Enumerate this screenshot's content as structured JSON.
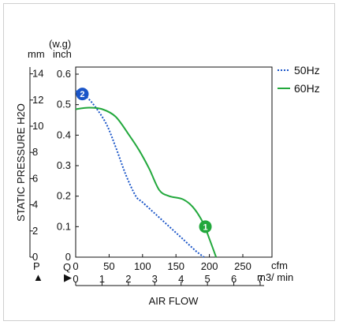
{
  "chart_data": {
    "type": "line",
    "ylabel": "STATIC PRESSURE H2O",
    "xlabel": "AIR FLOW",
    "y_unit_mm": "mm",
    "y_unit_inch": "inch",
    "y_unit_wg": "(w.g)",
    "pressure_symbol": "P",
    "flow_symbol": "Q",
    "arrow_up": "▲",
    "arrow_right": "▶",
    "x_unit_cfm": "cfm",
    "x_unit_m3min": "m3/ min",
    "xlim_cfm": [
      0,
      250
    ],
    "ylim_inch": [
      0,
      0.6
    ],
    "ylim_mm": [
      0,
      15
    ],
    "x_ticks_cfm": [
      "0",
      "50",
      "100",
      "150",
      "200",
      "250"
    ],
    "x_ticks_m3min": [
      "0",
      "1",
      "2",
      "3",
      "4",
      "5",
      "6",
      "7"
    ],
    "y_ticks_inch": [
      "0",
      "0.1",
      "0.2",
      "0.3",
      "0.4",
      "0.5",
      "0.6"
    ],
    "y_ticks_mm": [
      "0",
      "2",
      "4",
      "6",
      "8",
      "10",
      "12",
      "14"
    ],
    "grid": false,
    "legend_position": "top-right",
    "series": [
      {
        "name": "50Hz",
        "color": "#1a55c8",
        "style": "dotted",
        "marker_label": "2",
        "marker_at": [
          10,
          0.535
        ],
        "x": [
          0,
          10,
          25,
          45,
          60,
          75,
          90,
          100,
          120,
          140,
          160,
          180,
          192
        ],
        "y": [
          0.545,
          0.535,
          0.505,
          0.44,
          0.36,
          0.27,
          0.2,
          0.18,
          0.14,
          0.1,
          0.06,
          0.02,
          0
        ]
      },
      {
        "name": "60Hz",
        "color": "#22a83c",
        "style": "solid",
        "marker_label": "1",
        "marker_at": [
          194,
          0.1
        ],
        "x": [
          0,
          20,
          40,
          60,
          80,
          95,
          110,
          125,
          140,
          160,
          175,
          190,
          200,
          210
        ],
        "y": [
          0.485,
          0.49,
          0.485,
          0.46,
          0.4,
          0.35,
          0.29,
          0.22,
          0.2,
          0.19,
          0.165,
          0.115,
          0.06,
          0
        ]
      }
    ]
  }
}
